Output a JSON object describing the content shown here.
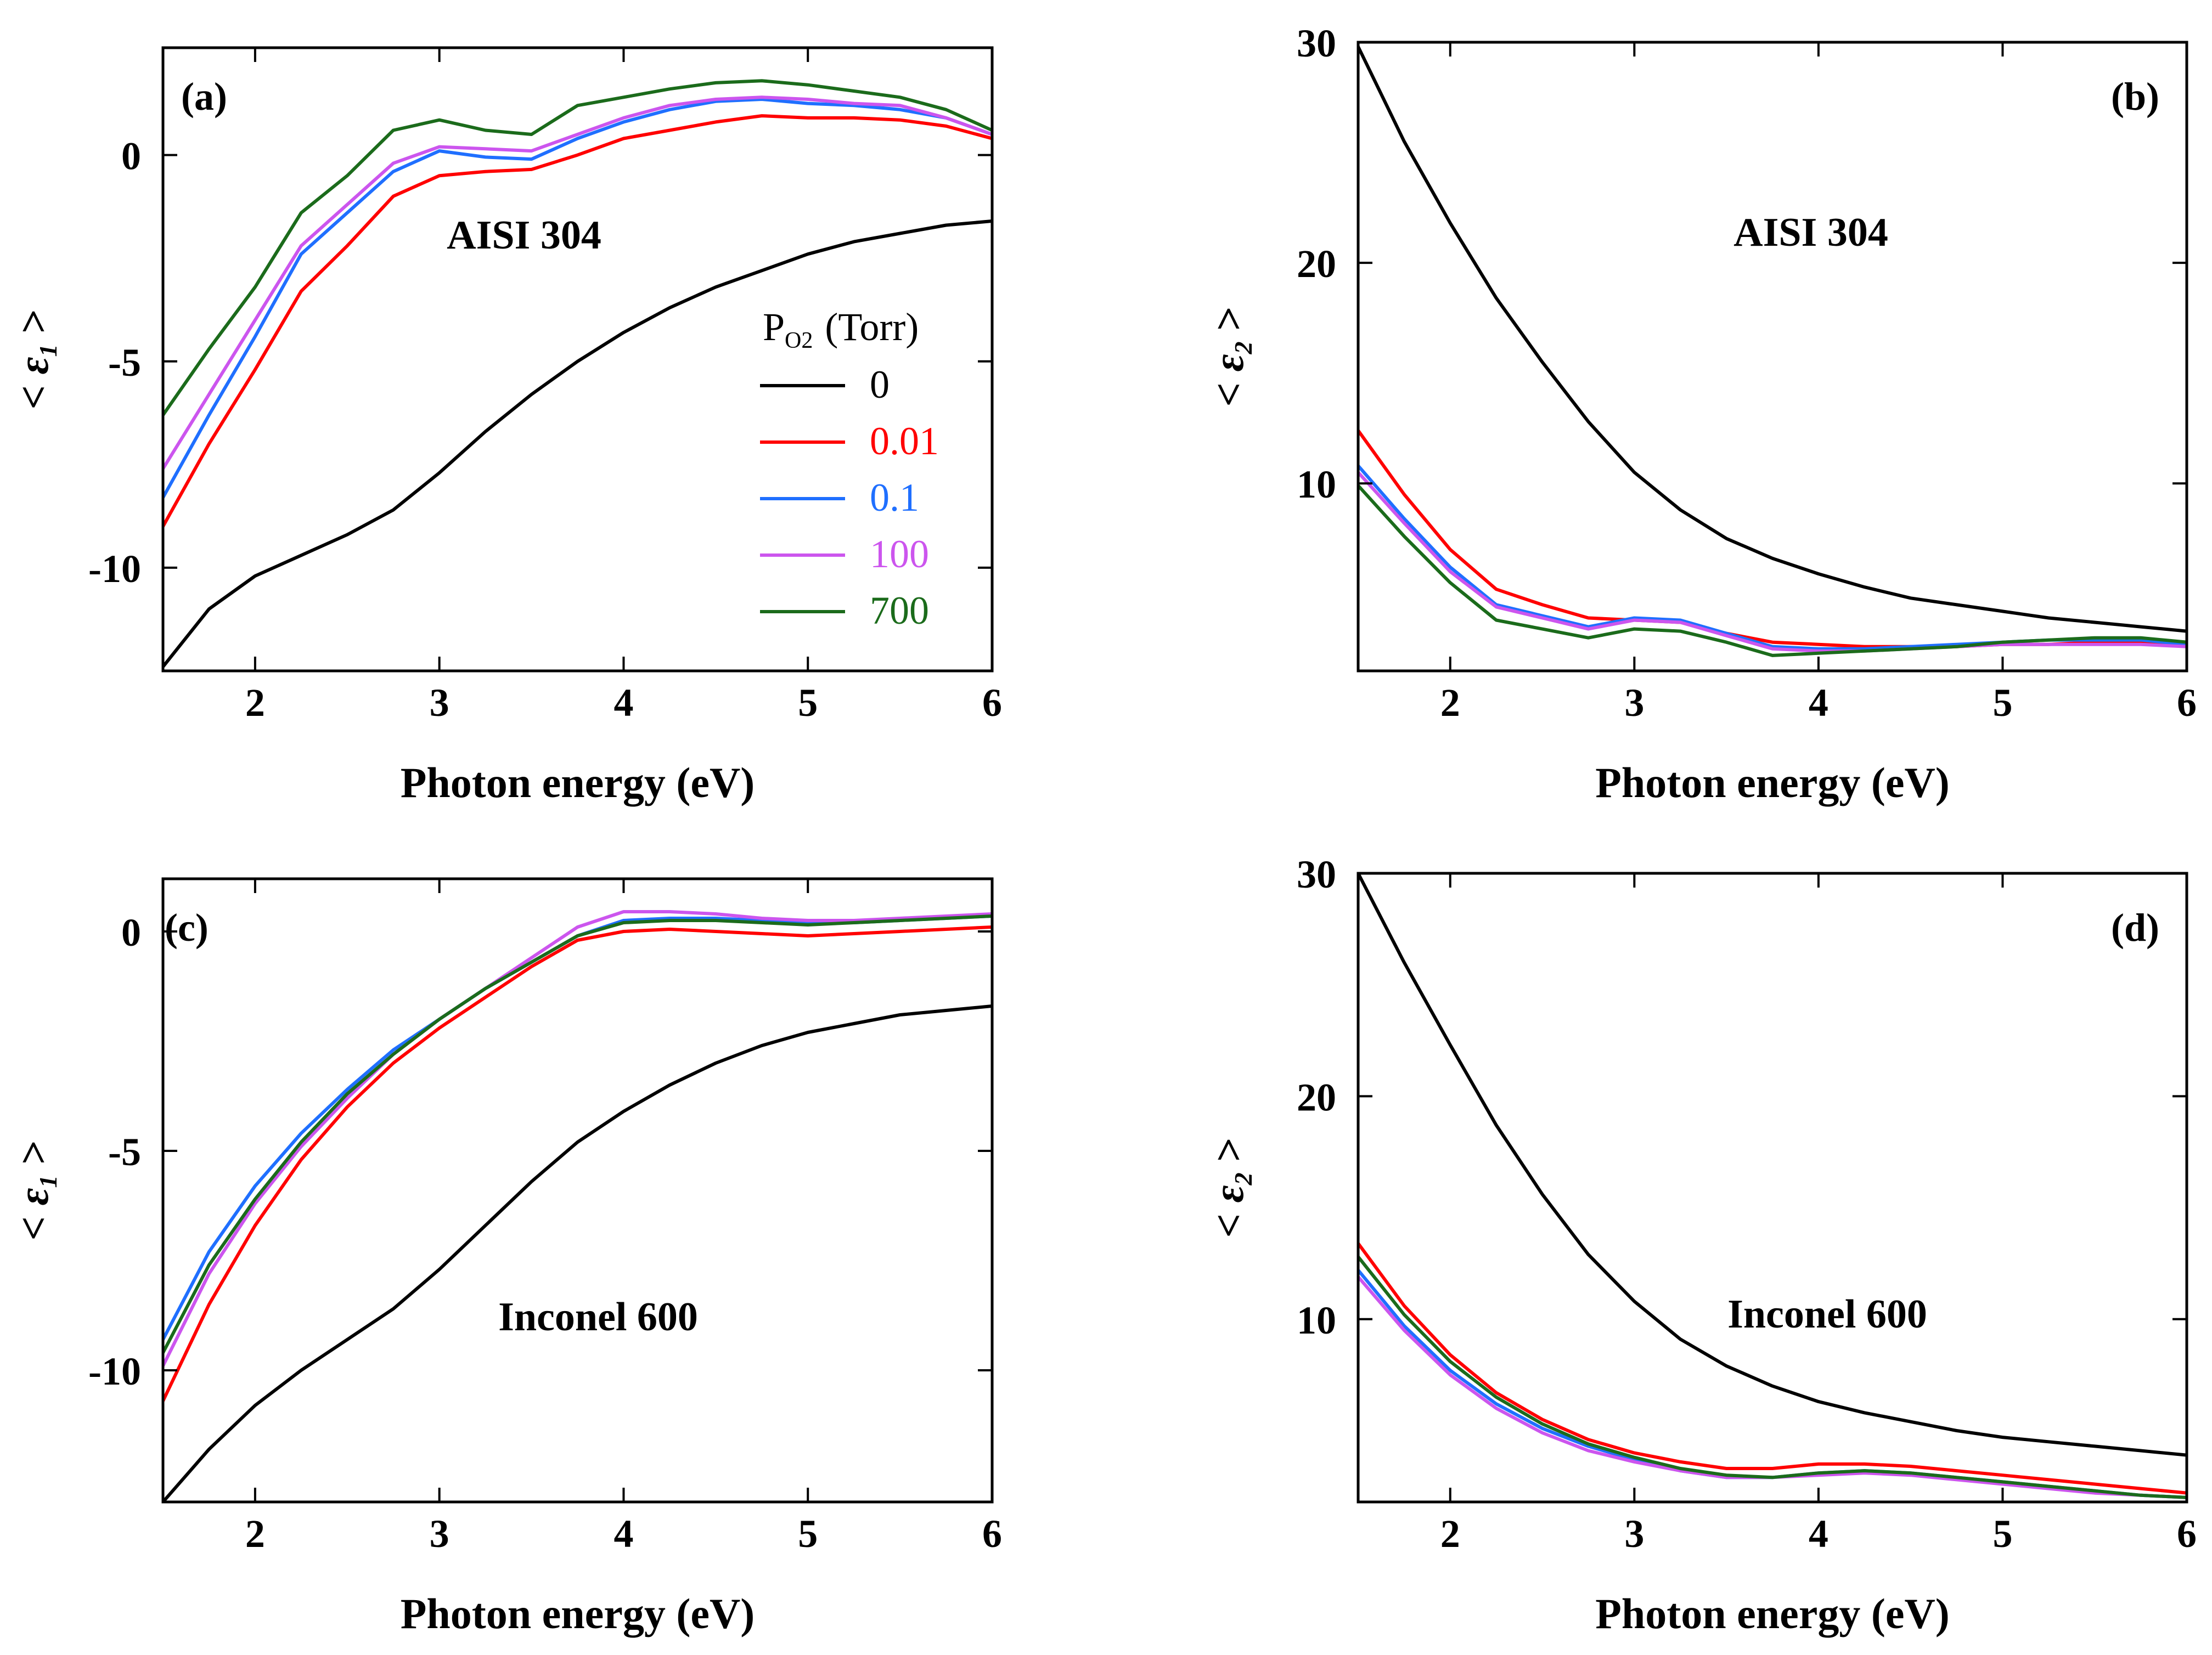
{
  "legend": {
    "title": "P",
    "title_sub": "O2",
    "title_unit": "(Torr)",
    "entries": [
      {
        "label": "0",
        "color": "#000000"
      },
      {
        "label": "0.01",
        "color": "#ff0000"
      },
      {
        "label": "0.1",
        "color": "#1f6fff"
      },
      {
        "label": "100",
        "color": "#cc55ee"
      },
      {
        "label": "700",
        "color": "#1b6b1b"
      }
    ]
  },
  "chart_data": [
    {
      "panel": "(a)",
      "type": "line",
      "annotation": "AISI 304",
      "xlabel": "Photon energy (eV)",
      "ylabel": "< ε1 >",
      "xlim": [
        1.5,
        6
      ],
      "ylim": [
        -12.5,
        2.6
      ],
      "xticks": [
        2,
        3,
        4,
        5,
        6
      ],
      "yticks": [
        0,
        -5,
        -10
      ],
      "x": [
        1.5,
        1.75,
        2.0,
        2.25,
        2.5,
        2.75,
        3.0,
        3.25,
        3.5,
        3.75,
        4.0,
        4.25,
        4.5,
        4.75,
        5.0,
        5.25,
        5.5,
        5.75,
        6.0
      ],
      "series": [
        {
          "name": "0",
          "color": "#000000",
          "values": [
            -12.4,
            -11.0,
            -10.2,
            -9.7,
            -9.2,
            -8.6,
            -7.7,
            -6.7,
            -5.8,
            -5.0,
            -4.3,
            -3.7,
            -3.2,
            -2.8,
            -2.4,
            -2.1,
            -1.9,
            -1.7,
            -1.6
          ]
        },
        {
          "name": "0.01",
          "color": "#ff0000",
          "values": [
            -9.0,
            -7.0,
            -5.2,
            -3.3,
            -2.2,
            -1.0,
            -0.5,
            -0.4,
            -0.35,
            0.0,
            0.4,
            0.6,
            0.8,
            0.95,
            0.9,
            0.9,
            0.85,
            0.7,
            0.4
          ]
        },
        {
          "name": "0.1",
          "color": "#1f6fff",
          "values": [
            -8.3,
            -6.3,
            -4.4,
            -2.4,
            -1.4,
            -0.4,
            0.1,
            -0.05,
            -0.1,
            0.4,
            0.8,
            1.1,
            1.3,
            1.35,
            1.25,
            1.2,
            1.1,
            0.9,
            0.5
          ]
        },
        {
          "name": "100",
          "color": "#cc55ee",
          "values": [
            -7.6,
            -5.8,
            -4.0,
            -2.2,
            -1.2,
            -0.2,
            0.2,
            0.15,
            0.1,
            0.5,
            0.9,
            1.2,
            1.35,
            1.4,
            1.35,
            1.25,
            1.2,
            0.9,
            0.5
          ]
        },
        {
          "name": "700",
          "color": "#1b6b1b",
          "values": [
            -6.3,
            -4.7,
            -3.2,
            -1.4,
            -0.5,
            0.6,
            0.85,
            0.6,
            0.5,
            1.2,
            1.4,
            1.6,
            1.75,
            1.8,
            1.7,
            1.55,
            1.4,
            1.1,
            0.6
          ]
        }
      ]
    },
    {
      "panel": "(b)",
      "type": "line",
      "annotation": "AISI 304",
      "xlabel": "Photon energy (eV)",
      "ylabel": "< ε2 >",
      "xlim": [
        1.5,
        6
      ],
      "ylim": [
        1.5,
        30
      ],
      "xticks": [
        2,
        3,
        4,
        5,
        6
      ],
      "yticks": [
        10,
        20,
        30
      ],
      "x": [
        1.5,
        1.75,
        2.0,
        2.25,
        2.5,
        2.75,
        3.0,
        3.25,
        3.5,
        3.75,
        4.0,
        4.25,
        4.5,
        4.75,
        5.0,
        5.25,
        5.5,
        5.75,
        6.0
      ],
      "series": [
        {
          "name": "0",
          "color": "#000000",
          "values": [
            29.8,
            25.5,
            21.8,
            18.4,
            15.5,
            12.8,
            10.5,
            8.8,
            7.5,
            6.6,
            5.9,
            5.3,
            4.8,
            4.5,
            4.2,
            3.9,
            3.7,
            3.5,
            3.3
          ]
        },
        {
          "name": "0.01",
          "color": "#ff0000",
          "values": [
            12.4,
            9.5,
            7.0,
            5.2,
            4.5,
            3.9,
            3.8,
            3.7,
            3.2,
            2.8,
            2.7,
            2.6,
            2.6,
            2.6,
            2.7,
            2.7,
            2.8,
            2.8,
            2.6
          ]
        },
        {
          "name": "0.1",
          "color": "#1f6fff",
          "values": [
            10.8,
            8.4,
            6.2,
            4.5,
            4.0,
            3.5,
            3.9,
            3.8,
            3.2,
            2.6,
            2.5,
            2.5,
            2.6,
            2.7,
            2.8,
            2.9,
            2.9,
            2.9,
            2.7
          ]
        },
        {
          "name": "100",
          "color": "#cc55ee",
          "values": [
            10.5,
            8.2,
            6.0,
            4.4,
            3.9,
            3.4,
            3.8,
            3.7,
            3.1,
            2.5,
            2.4,
            2.4,
            2.5,
            2.6,
            2.7,
            2.7,
            2.7,
            2.7,
            2.6
          ]
        },
        {
          "name": "700",
          "color": "#1b6b1b",
          "values": [
            9.9,
            7.6,
            5.5,
            3.8,
            3.4,
            3.0,
            3.4,
            3.3,
            2.8,
            2.2,
            2.3,
            2.4,
            2.5,
            2.6,
            2.8,
            2.9,
            3.0,
            3.0,
            2.8
          ]
        }
      ]
    },
    {
      "panel": "(c)",
      "type": "line",
      "annotation": "Inconel 600",
      "xlabel": "Photon energy (eV)",
      "ylabel": "< ε1 >",
      "xlim": [
        1.5,
        6
      ],
      "ylim": [
        -13,
        1.2
      ],
      "xticks": [
        2,
        3,
        4,
        5,
        6
      ],
      "yticks": [
        0,
        -5,
        -10
      ],
      "x": [
        1.5,
        1.75,
        2.0,
        2.25,
        2.5,
        2.75,
        3.0,
        3.25,
        3.5,
        3.75,
        4.0,
        4.25,
        4.5,
        4.75,
        5.0,
        5.25,
        5.5,
        5.75,
        6.0
      ],
      "series": [
        {
          "name": "0",
          "color": "#000000",
          "values": [
            -13.0,
            -11.8,
            -10.8,
            -10.0,
            -9.3,
            -8.6,
            -7.7,
            -6.7,
            -5.7,
            -4.8,
            -4.1,
            -3.5,
            -3.0,
            -2.6,
            -2.3,
            -2.1,
            -1.9,
            -1.8,
            -1.7
          ]
        },
        {
          "name": "0.01",
          "color": "#ff0000",
          "values": [
            -10.7,
            -8.5,
            -6.7,
            -5.2,
            -4.0,
            -3.0,
            -2.2,
            -1.5,
            -0.8,
            -0.2,
            0.0,
            0.05,
            0.0,
            -0.05,
            -0.1,
            -0.05,
            0.0,
            0.05,
            0.1
          ]
        },
        {
          "name": "0.1",
          "color": "#1f6fff",
          "values": [
            -9.3,
            -7.3,
            -5.8,
            -4.6,
            -3.6,
            -2.7,
            -2.0,
            -1.3,
            -0.7,
            -0.1,
            0.25,
            0.3,
            0.3,
            0.25,
            0.2,
            0.2,
            0.25,
            0.3,
            0.35
          ]
        },
        {
          "name": "100",
          "color": "#cc55ee",
          "values": [
            -9.9,
            -7.8,
            -6.2,
            -4.9,
            -3.8,
            -2.8,
            -2.0,
            -1.3,
            -0.6,
            0.1,
            0.45,
            0.45,
            0.4,
            0.3,
            0.25,
            0.25,
            0.3,
            0.35,
            0.4
          ]
        },
        {
          "name": "700",
          "color": "#1b6b1b",
          "values": [
            -9.6,
            -7.6,
            -6.1,
            -4.8,
            -3.7,
            -2.8,
            -2.0,
            -1.3,
            -0.7,
            -0.1,
            0.2,
            0.25,
            0.25,
            0.2,
            0.15,
            0.2,
            0.25,
            0.3,
            0.35
          ]
        }
      ]
    },
    {
      "panel": "(d)",
      "type": "line",
      "annotation": "Inconel 600",
      "xlabel": "Photon energy (eV)",
      "ylabel": "< ε2 >",
      "xlim": [
        1.5,
        6
      ],
      "ylim": [
        1.8,
        30
      ],
      "xticks": [
        2,
        3,
        4,
        5,
        6
      ],
      "yticks": [
        10,
        20,
        30
      ],
      "x": [
        1.5,
        1.75,
        2.0,
        2.25,
        2.5,
        2.75,
        3.0,
        3.25,
        3.5,
        3.75,
        4.0,
        4.25,
        4.5,
        4.75,
        5.0,
        5.25,
        5.5,
        5.75,
        6.0
      ],
      "series": [
        {
          "name": "0",
          "color": "#000000",
          "values": [
            30.0,
            26.0,
            22.3,
            18.7,
            15.6,
            12.9,
            10.8,
            9.1,
            7.9,
            7.0,
            6.3,
            5.8,
            5.4,
            5.0,
            4.7,
            4.5,
            4.3,
            4.1,
            3.9
          ]
        },
        {
          "name": "0.01",
          "color": "#ff0000",
          "values": [
            13.4,
            10.6,
            8.4,
            6.7,
            5.5,
            4.6,
            4.0,
            3.6,
            3.3,
            3.3,
            3.5,
            3.5,
            3.4,
            3.2,
            3.0,
            2.8,
            2.6,
            2.4,
            2.2
          ]
        },
        {
          "name": "0.1",
          "color": "#1f6fff",
          "values": [
            12.2,
            9.7,
            7.7,
            6.2,
            5.1,
            4.3,
            3.7,
            3.2,
            2.9,
            2.9,
            3.1,
            3.2,
            3.1,
            2.9,
            2.7,
            2.5,
            2.3,
            2.1,
            2.0
          ]
        },
        {
          "name": "100",
          "color": "#cc55ee",
          "values": [
            11.9,
            9.5,
            7.5,
            6.0,
            4.9,
            4.1,
            3.6,
            3.2,
            2.9,
            2.9,
            3.0,
            3.1,
            3.0,
            2.8,
            2.6,
            2.4,
            2.2,
            2.1,
            2.0
          ]
        },
        {
          "name": "700",
          "color": "#1b6b1b",
          "values": [
            12.8,
            10.2,
            8.1,
            6.5,
            5.3,
            4.4,
            3.8,
            3.3,
            3.0,
            2.9,
            3.1,
            3.2,
            3.1,
            2.9,
            2.7,
            2.5,
            2.3,
            2.1,
            2.0
          ]
        }
      ]
    }
  ]
}
